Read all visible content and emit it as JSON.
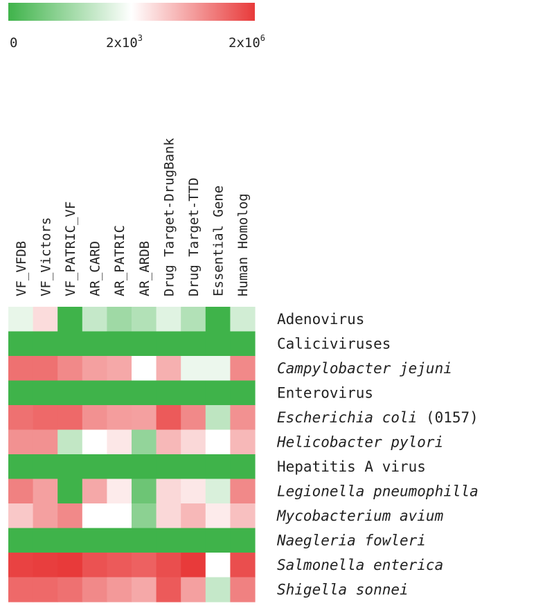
{
  "chart_data": {
    "type": "heatmap",
    "title": "",
    "colorbar": {
      "colors": [
        "#3fb34a",
        "#ffffff",
        "#e83a3a"
      ],
      "tick_labels": [
        {
          "mantissa": "0",
          "exp": ""
        },
        {
          "mantissa": "2x10",
          "exp": "3"
        },
        {
          "mantissa": "2x10",
          "exp": "6"
        }
      ]
    },
    "columns": [
      "VF_VFDB",
      "VF_Victors",
      "VF_PATRIC_VF",
      "AR_CARD",
      "AR_PATRIC",
      "AR_ARDB",
      "Drug Target-DrugBank",
      "Drug Target-TTD",
      "Essential Gene",
      "Human Homolog"
    ],
    "rows": [
      {
        "name": "Adenovirus",
        "italic": false,
        "suffix": ""
      },
      {
        "name": "Caliciviruses",
        "italic": false,
        "suffix": ""
      },
      {
        "name": "Campylobacter jejuni",
        "italic": true,
        "suffix": ""
      },
      {
        "name": "Enterovirus",
        "italic": false,
        "suffix": ""
      },
      {
        "name": "Escherichia coli",
        "italic": true,
        "suffix": " (0157)"
      },
      {
        "name": "Helicobacter pylori",
        "italic": true,
        "suffix": ""
      },
      {
        "name": "Hepatitis A virus",
        "italic": false,
        "suffix": ""
      },
      {
        "name": "Legionella pneumophilla",
        "italic": true,
        "suffix": ""
      },
      {
        "name": "Mycobacterium avium",
        "italic": true,
        "suffix": ""
      },
      {
        "name": "Naegleria fowleri",
        "italic": true,
        "suffix": ""
      },
      {
        "name": "Salmonella enterica",
        "italic": true,
        "suffix": ""
      },
      {
        "name": "Shigella sonnei",
        "italic": true,
        "suffix": ""
      }
    ],
    "values": [
      [
        0.44,
        0.59,
        0.0,
        0.35,
        0.25,
        0.3,
        0.42,
        0.3,
        0.0,
        0.38
      ],
      [
        0.0,
        0.0,
        0.0,
        0.0,
        0.0,
        0.0,
        0.0,
        0.0,
        0.0,
        0.0
      ],
      [
        0.86,
        0.86,
        0.8,
        0.74,
        0.72,
        0.5,
        0.7,
        0.45,
        0.45,
        0.8
      ],
      [
        0.0,
        0.0,
        0.0,
        0.0,
        0.0,
        0.0,
        0.0,
        0.0,
        0.0,
        0.0
      ],
      [
        0.86,
        0.88,
        0.88,
        0.78,
        0.75,
        0.74,
        0.92,
        0.8,
        0.33,
        0.78
      ],
      [
        0.78,
        0.78,
        0.34,
        0.5,
        0.56,
        0.22,
        0.68,
        0.6,
        0.5,
        0.68
      ],
      [
        0.0,
        0.0,
        0.0,
        0.0,
        0.0,
        0.0,
        0.0,
        0.0,
        0.0,
        0.0
      ],
      [
        0.82,
        0.74,
        0.0,
        0.72,
        0.55,
        0.12,
        0.6,
        0.56,
        0.4,
        0.8
      ],
      [
        0.64,
        0.74,
        0.8,
        0.5,
        0.5,
        0.2,
        0.6,
        0.68,
        0.55,
        0.66
      ],
      [
        0.0,
        0.0,
        0.0,
        0.0,
        0.0,
        0.0,
        0.0,
        0.0,
        0.0,
        0.0
      ],
      [
        0.98,
        0.99,
        1.0,
        0.94,
        0.92,
        0.9,
        0.95,
        1.0,
        0.5,
        0.95
      ],
      [
        0.88,
        0.88,
        0.86,
        0.8,
        0.76,
        0.72,
        0.92,
        0.74,
        0.35,
        0.82
      ]
    ]
  }
}
